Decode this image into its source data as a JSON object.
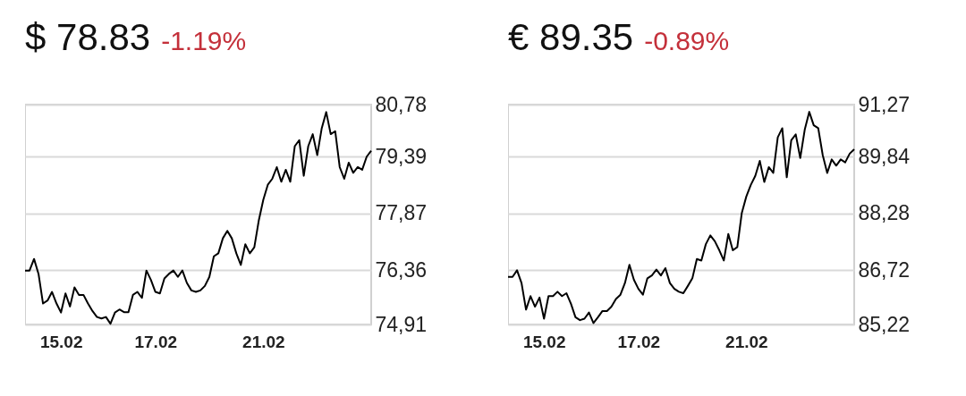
{
  "chart_data": [
    {
      "type": "line",
      "title": "$ 78.83",
      "subtitle": "-1.19%",
      "grid": "y",
      "categories": [
        null,
        null,
        null,
        null,
        null,
        null,
        null,
        null,
        "15.02",
        null,
        null,
        null,
        null,
        null,
        null,
        null,
        null,
        null,
        null,
        null,
        null,
        null,
        null,
        null,
        null,
        null,
        null,
        null,
        null,
        "17.02",
        null,
        null,
        null,
        null,
        null,
        null,
        null,
        null,
        null,
        null,
        null,
        null,
        null,
        null,
        null,
        null,
        null,
        null,
        null,
        null,
        null,
        null,
        null,
        "21.02",
        null,
        null,
        null,
        null,
        null,
        null,
        null,
        null,
        null,
        null,
        null,
        null,
        null,
        null,
        null,
        null,
        null,
        null,
        null,
        null,
        null,
        null,
        null,
        null
      ],
      "ylim": [
        74.91,
        80.78
      ],
      "yticks": [
        {
          "value": 74.91,
          "label": "74,91"
        },
        {
          "value": 76.36,
          "label": "76,36"
        },
        {
          "value": 77.87,
          "label": "77,87"
        },
        {
          "value": 79.39,
          "label": "79,39"
        },
        {
          "value": 80.78,
          "label": "80,78"
        }
      ],
      "series": [
        {
          "color": "#000000",
          "values": [
            76.35,
            76.35,
            76.66,
            76.26,
            75.47,
            75.55,
            75.78,
            75.47,
            75.23,
            75.74,
            75.39,
            75.9,
            75.7,
            75.7,
            75.47,
            75.27,
            75.11,
            75.07,
            75.11,
            74.93,
            75.23,
            75.31,
            75.24,
            75.24,
            75.7,
            75.78,
            75.62,
            76.35,
            76.1,
            75.78,
            75.74,
            76.14,
            76.26,
            76.35,
            76.18,
            76.35,
            76.02,
            75.82,
            75.78,
            75.82,
            75.94,
            76.18,
            76.73,
            76.81,
            77.21,
            77.41,
            77.21,
            76.81,
            76.5,
            77.05,
            76.81,
            76.97,
            77.69,
            78.24,
            78.64,
            78.8,
            79.11,
            78.72,
            79.04,
            78.72,
            79.67,
            79.83,
            78.88,
            79.67,
            79.99,
            79.43,
            80.15,
            80.58,
            79.99,
            80.07,
            79.11,
            78.8,
            79.23,
            78.96,
            79.11,
            79.04,
            79.39,
            79.55
          ]
        }
      ]
    },
    {
      "type": "line",
      "title": "€ 89.35",
      "subtitle": "-0.89%",
      "grid": "y",
      "categories": [
        null,
        null,
        null,
        null,
        null,
        null,
        null,
        null,
        "15.02",
        null,
        null,
        null,
        null,
        null,
        null,
        null,
        null,
        null,
        null,
        null,
        null,
        null,
        null,
        null,
        null,
        null,
        null,
        null,
        null,
        "17.02",
        null,
        null,
        null,
        null,
        null,
        null,
        null,
        null,
        null,
        null,
        null,
        null,
        null,
        null,
        null,
        null,
        null,
        null,
        null,
        null,
        null,
        null,
        null,
        "21.02",
        null,
        null,
        null,
        null,
        null,
        null,
        null,
        null,
        null,
        null,
        null,
        null,
        null,
        null,
        null,
        null,
        null,
        null,
        null,
        null,
        null,
        null,
        null,
        null
      ],
      "ylim": [
        85.22,
        91.27
      ],
      "yticks": [
        {
          "value": 85.22,
          "label": "85,22"
        },
        {
          "value": 86.72,
          "label": "86,72"
        },
        {
          "value": 88.28,
          "label": "88,28"
        },
        {
          "value": 89.84,
          "label": "89,84"
        },
        {
          "value": 91.27,
          "label": "91,27"
        }
      ],
      "series": [
        {
          "color": "#000000",
          "values": [
            86.53,
            86.53,
            86.71,
            86.36,
            85.63,
            86.0,
            85.71,
            85.96,
            85.38,
            86.0,
            86.0,
            86.12,
            86.0,
            86.08,
            85.79,
            85.42,
            85.34,
            85.38,
            85.55,
            85.26,
            85.42,
            85.59,
            85.59,
            85.71,
            85.92,
            86.04,
            86.36,
            86.86,
            86.45,
            86.2,
            86.04,
            86.49,
            86.57,
            86.73,
            86.57,
            86.77,
            86.36,
            86.2,
            86.12,
            86.08,
            86.28,
            86.49,
            87.02,
            86.98,
            87.43,
            87.67,
            87.51,
            87.26,
            86.98,
            87.71,
            87.26,
            87.35,
            88.29,
            88.74,
            89.06,
            89.31,
            89.72,
            89.14,
            89.55,
            89.39,
            90.37,
            90.62,
            89.27,
            90.29,
            90.45,
            89.8,
            90.58,
            91.07,
            90.7,
            90.62,
            89.88,
            89.39,
            89.76,
            89.59,
            89.76,
            89.68,
            89.92,
            90.04
          ]
        }
      ]
    }
  ]
}
